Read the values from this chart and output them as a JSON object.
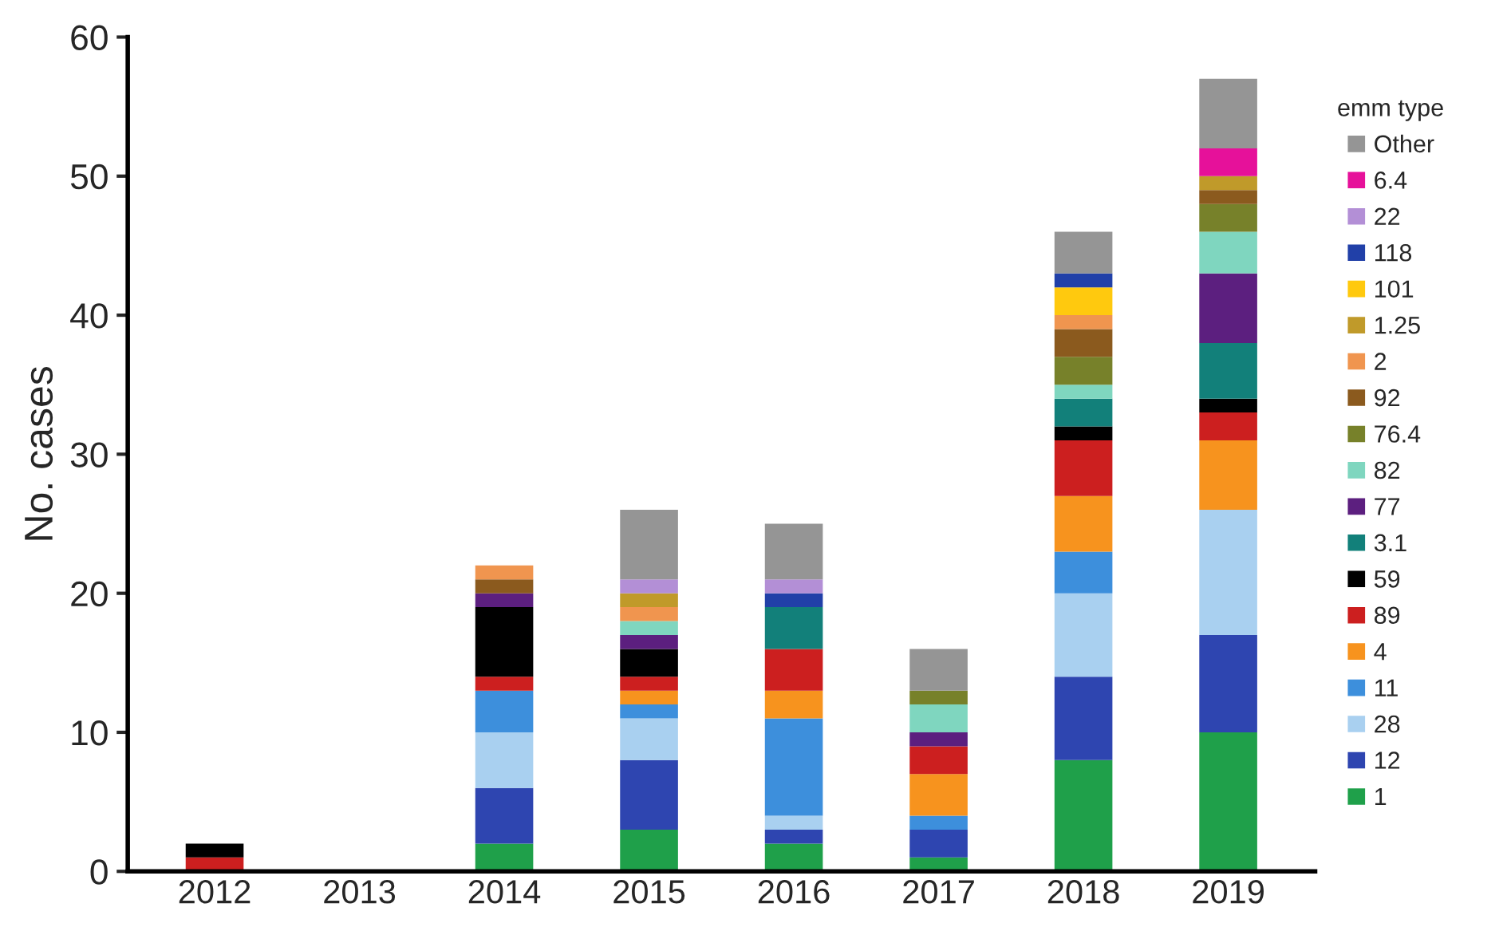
{
  "chart_data": {
    "type": "bar",
    "stacked": true,
    "ylabel": "No. cases",
    "legend_title": "emm type",
    "legend": "right",
    "categories": [
      "2012",
      "2013",
      "2014",
      "2015",
      "2016",
      "2017",
      "2018",
      "2019"
    ],
    "ylim": [
      0,
      60
    ],
    "yticks": [
      0,
      10,
      20,
      30,
      40,
      50,
      60
    ],
    "grid": false,
    "series": [
      {
        "name": "1",
        "color": "#1fa04a",
        "values": [
          0,
          0,
          2,
          3,
          2,
          1,
          8,
          10
        ]
      },
      {
        "name": "12",
        "color": "#2e45b0",
        "values": [
          0,
          0,
          4,
          5,
          1,
          2,
          6,
          7
        ]
      },
      {
        "name": "28",
        "color": "#a9d0f0",
        "values": [
          0,
          0,
          4,
          3,
          1,
          0,
          6,
          9
        ]
      },
      {
        "name": "11",
        "color": "#3d8fdc",
        "values": [
          0,
          0,
          3,
          1,
          7,
          1,
          3,
          0
        ]
      },
      {
        "name": "4",
        "color": "#f7931e",
        "values": [
          0,
          0,
          0,
          1,
          2,
          3,
          4,
          5
        ]
      },
      {
        "name": "89",
        "color": "#cc1f1f",
        "values": [
          1,
          0,
          1,
          1,
          3,
          2,
          4,
          2
        ]
      },
      {
        "name": "59",
        "color": "#000000",
        "values": [
          1,
          0,
          5,
          2,
          0,
          0,
          1,
          1
        ]
      },
      {
        "name": "3.1",
        "color": "#12807a",
        "values": [
          0,
          0,
          0,
          0,
          3,
          0,
          2,
          4
        ]
      },
      {
        "name": "77",
        "color": "#5c1f7f",
        "values": [
          0,
          0,
          1,
          1,
          0,
          1,
          0,
          5
        ]
      },
      {
        "name": "82",
        "color": "#7fd6bf",
        "values": [
          0,
          0,
          0,
          1,
          0,
          2,
          1,
          3
        ]
      },
      {
        "name": "76.4",
        "color": "#77812a",
        "values": [
          0,
          0,
          0,
          0,
          0,
          1,
          2,
          2
        ]
      },
      {
        "name": "92",
        "color": "#8b5a1e",
        "values": [
          0,
          0,
          1,
          0,
          0,
          0,
          2,
          1
        ]
      },
      {
        "name": "2",
        "color": "#f0954f",
        "values": [
          0,
          0,
          1,
          1,
          0,
          0,
          1,
          0
        ]
      },
      {
        "name": "1.25",
        "color": "#c09a2a",
        "values": [
          0,
          0,
          0,
          1,
          0,
          0,
          0,
          1
        ]
      },
      {
        "name": "101",
        "color": "#ffc90e",
        "values": [
          0,
          0,
          0,
          0,
          0,
          0,
          2,
          0
        ]
      },
      {
        "name": "118",
        "color": "#2140a8",
        "values": [
          0,
          0,
          0,
          0,
          1,
          0,
          1,
          0
        ]
      },
      {
        "name": "22",
        "color": "#b38fd6",
        "values": [
          0,
          0,
          0,
          1,
          1,
          0,
          0,
          0
        ]
      },
      {
        "name": "6.4",
        "color": "#e6119a",
        "values": [
          0,
          0,
          0,
          0,
          0,
          0,
          0,
          2
        ]
      },
      {
        "name": "Other",
        "color": "#959595",
        "values": [
          0,
          0,
          0,
          5,
          4,
          3,
          3,
          5
        ]
      }
    ]
  }
}
